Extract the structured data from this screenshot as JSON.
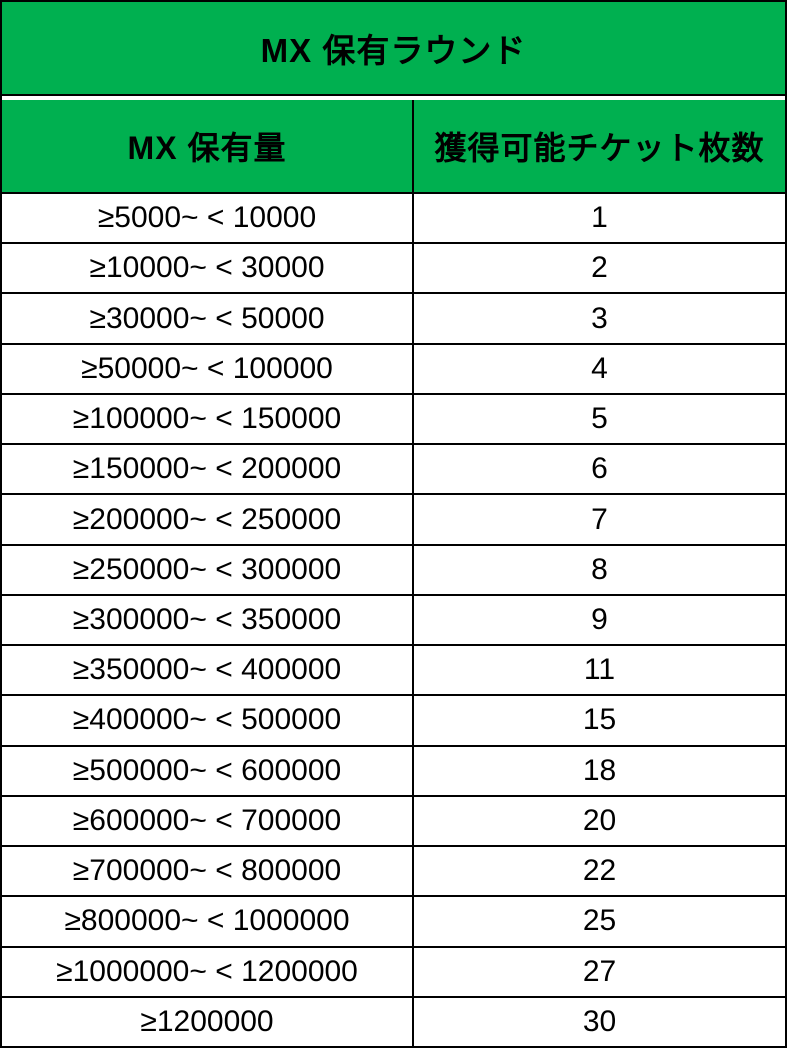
{
  "table": {
    "title": "MX 保有ラウンド",
    "columns": [
      "MX 保有量",
      "獲得可能チケット枚数"
    ],
    "rows": [
      {
        "range": "≥5000~ < 10000",
        "tickets": "1"
      },
      {
        "range": "≥10000~ < 30000",
        "tickets": "2"
      },
      {
        "range": "≥30000~ < 50000",
        "tickets": "3"
      },
      {
        "range": "≥50000~ < 100000",
        "tickets": "4"
      },
      {
        "range": "≥100000~ < 150000",
        "tickets": "5"
      },
      {
        "range": "≥150000~ < 200000",
        "tickets": "6"
      },
      {
        "range": "≥200000~ < 250000",
        "tickets": "7"
      },
      {
        "range": "≥250000~ < 300000",
        "tickets": "8"
      },
      {
        "range": "≥300000~ < 350000",
        "tickets": "9"
      },
      {
        "range": "≥350000~ < 400000",
        "tickets": "11"
      },
      {
        "range": "≥400000~ < 500000",
        "tickets": "15"
      },
      {
        "range": "≥500000~ < 600000",
        "tickets": "18"
      },
      {
        "range": "≥600000~ < 700000",
        "tickets": "20"
      },
      {
        "range": "≥700000~ < 800000",
        "tickets": "22"
      },
      {
        "range": "≥800000~ < 1000000",
        "tickets": "25"
      },
      {
        "range": "≥1000000~ < 1200000",
        "tickets": "27"
      },
      {
        "range": "≥1200000",
        "tickets": "30"
      }
    ],
    "colors": {
      "header_bg": "#00B050",
      "border": "#000000",
      "body_bg": "#FFFFFF",
      "text": "#000000"
    }
  }
}
